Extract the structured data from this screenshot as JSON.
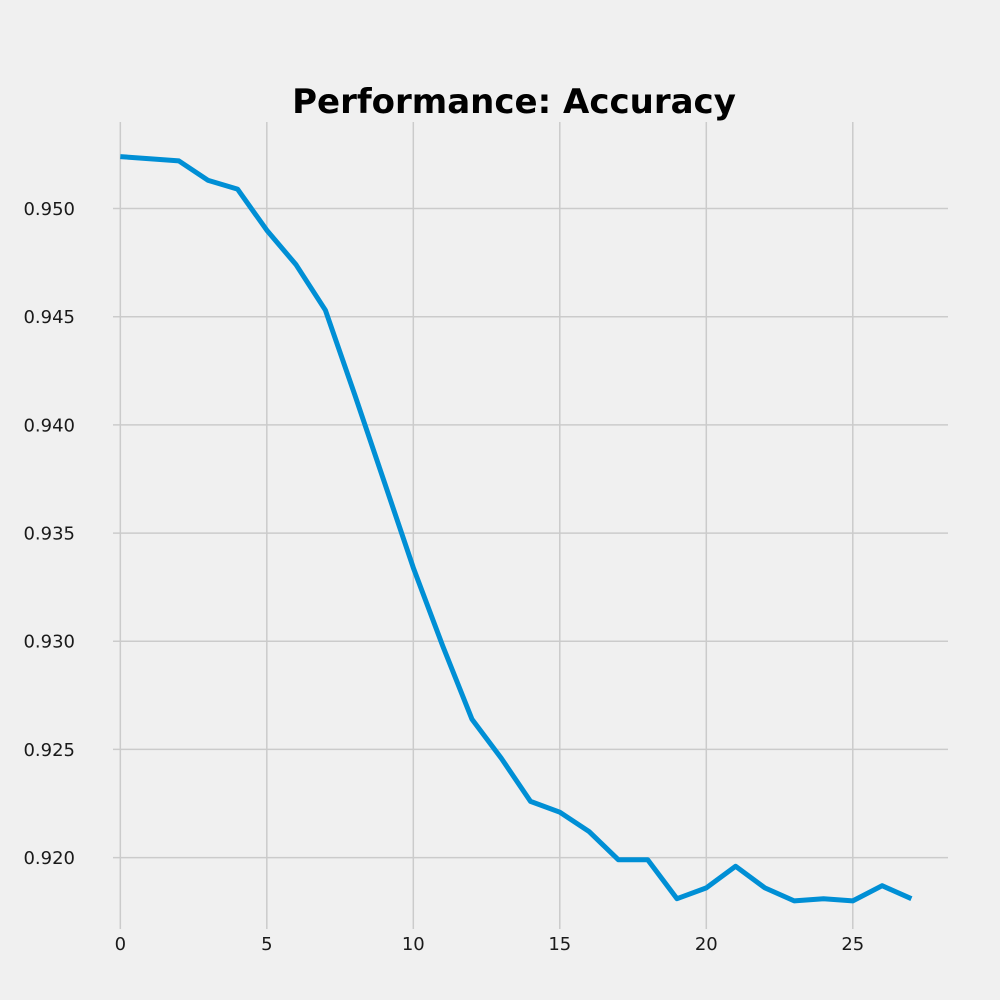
{
  "chart_data": {
    "type": "line",
    "title": "Performance: Accuracy",
    "xlabel": "",
    "ylabel": "",
    "xlim": [
      -0.25,
      28.25
    ],
    "ylim": [
      0.9167,
      0.954
    ],
    "xticks": [
      0,
      5,
      10,
      15,
      20,
      25
    ],
    "xtick_labels": [
      "0",
      "5",
      "10",
      "15",
      "20",
      "25"
    ],
    "yticks": [
      0.92,
      0.925,
      0.93,
      0.935,
      0.94,
      0.945,
      0.95
    ],
    "ytick_labels": [
      "0.920",
      "0.925",
      "0.930",
      "0.935",
      "0.940",
      "0.945",
      "0.950"
    ],
    "grid": true,
    "series": [
      {
        "color": "#008fd5",
        "x": [
          0,
          1,
          2,
          3,
          4,
          5,
          6,
          7,
          8,
          9,
          10,
          11,
          12,
          13,
          14,
          15,
          16,
          17,
          18,
          19,
          20,
          21,
          22,
          23,
          24,
          25,
          26,
          27
        ],
        "values": [
          0.9524,
          0.9523,
          0.9522,
          0.9513,
          0.9509,
          0.949,
          0.9474,
          0.9453,
          0.9414,
          0.9374,
          0.9334,
          0.9298,
          0.9264,
          0.9246,
          0.9226,
          0.9221,
          0.9212,
          0.9199,
          0.9199,
          0.9181,
          0.9186,
          0.9196,
          0.9186,
          0.918,
          0.9181,
          0.918,
          0.9187,
          0.9181
        ]
      }
    ]
  },
  "colors": {
    "background": "#f0f0f0",
    "grid": "#cbcbcb",
    "line": "#008fd5"
  }
}
